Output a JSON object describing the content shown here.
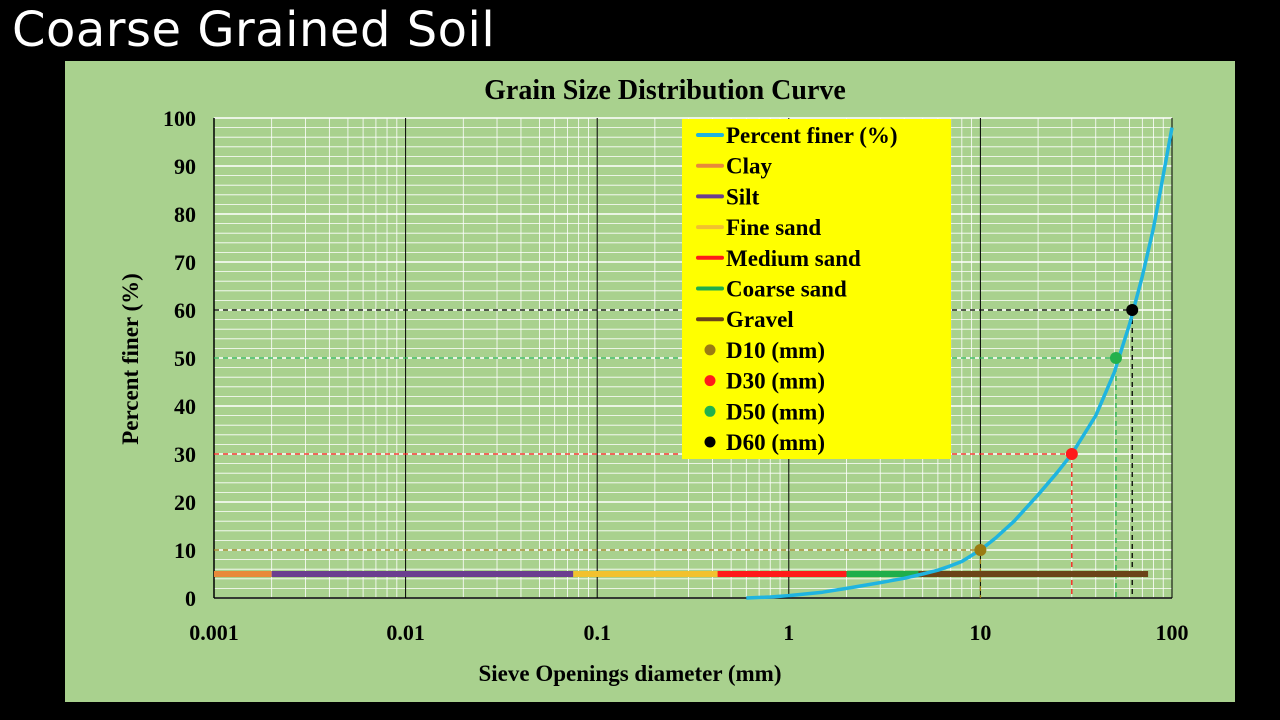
{
  "slide": {
    "title": "Coarse Grained Soil"
  },
  "colors": {
    "background": "#000000",
    "chart_area": "#a9d18e",
    "legend_background": "#ffff00",
    "curve": "#1fb4e0",
    "clay": "#e8893a",
    "silt": "#6b3e8f",
    "fine_sand": "#f2c12e",
    "medium_sand": "#ff1a1a",
    "coarse_sand": "#1fae4b",
    "gravel": "#6b4418",
    "d10": "#9a7b13",
    "d30": "#ff1a1a",
    "d50": "#22b14c",
    "d60": "#000000"
  },
  "chart_data": {
    "type": "line",
    "title": "Grain Size Distribution Curve",
    "xlabel": "Sieve Openings diameter (mm)",
    "ylabel": "Percent finer (%)",
    "x_scale": "log",
    "xlim": [
      0.001,
      100
    ],
    "ylim": [
      0,
      100
    ],
    "x_ticks": [
      "0.001",
      "0.01",
      "0.1",
      "1",
      "10",
      "100"
    ],
    "y_ticks": [
      "0",
      "10",
      "20",
      "30",
      "40",
      "50",
      "60",
      "70",
      "80",
      "90",
      "100"
    ],
    "grid": "major and minor",
    "legend_placement": "top-center",
    "series": [
      {
        "name": "Percent finer (%)",
        "kind": "line",
        "x": [
          0.6,
          0.8,
          1,
          1.5,
          2,
          3,
          4,
          5,
          6,
          7,
          8,
          10,
          12,
          15,
          20,
          25,
          30,
          40,
          50,
          60,
          70,
          80,
          90,
          100
        ],
        "y": [
          0,
          0.2,
          0.5,
          1.2,
          2,
          3.2,
          4.1,
          5,
          5.8,
          6.7,
          7.6,
          10,
          12.5,
          16,
          21.5,
          26,
          30,
          38,
          47,
          57,
          67,
          77,
          88,
          98
        ]
      },
      {
        "name": "Clay",
        "kind": "range",
        "x": [
          0.001,
          0.002
        ],
        "y": 5
      },
      {
        "name": "Silt",
        "kind": "range",
        "x": [
          0.002,
          0.075
        ],
        "y": 5
      },
      {
        "name": "Fine sand",
        "kind": "range",
        "x": [
          0.075,
          0.425
        ],
        "y": 5
      },
      {
        "name": "Medium sand",
        "kind": "range",
        "x": [
          0.425,
          2
        ],
        "y": 5
      },
      {
        "name": "Coarse sand",
        "kind": "range",
        "x": [
          2,
          4.75
        ],
        "y": 5
      },
      {
        "name": "Gravel",
        "kind": "range",
        "x": [
          4.75,
          75
        ],
        "y": 5
      },
      {
        "name": "D10 (mm)",
        "kind": "marker",
        "x": 10,
        "y": 10
      },
      {
        "name": "D30 (mm)",
        "kind": "marker",
        "x": 30,
        "y": 30
      },
      {
        "name": "D50 (mm)",
        "kind": "marker",
        "x": 51,
        "y": 50
      },
      {
        "name": "D60 (mm)",
        "kind": "marker",
        "x": 62,
        "y": 60
      }
    ],
    "legend": [
      {
        "label": "Percent finer (%)",
        "style": "line",
        "color_key": "curve"
      },
      {
        "label": "Clay",
        "style": "line",
        "color_key": "clay"
      },
      {
        "label": "Silt",
        "style": "line",
        "color_key": "silt"
      },
      {
        "label": "Fine sand",
        "style": "line",
        "color_key": "fine_sand"
      },
      {
        "label": "Medium sand",
        "style": "line",
        "color_key": "medium_sand"
      },
      {
        "label": "Coarse sand",
        "style": "line",
        "color_key": "coarse_sand"
      },
      {
        "label": "Gravel",
        "style": "line",
        "color_key": "gravel"
      },
      {
        "label": "D10 (mm)",
        "style": "dot",
        "color_key": "d10"
      },
      {
        "label": "D30 (mm)",
        "style": "dot",
        "color_key": "d30"
      },
      {
        "label": "D50 (mm)",
        "style": "dot",
        "color_key": "d50"
      },
      {
        "label": "D60 (mm)",
        "style": "dot",
        "color_key": "d60"
      }
    ]
  }
}
